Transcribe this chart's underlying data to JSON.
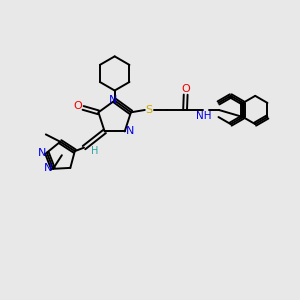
{
  "bg_color": "#e8e8e8",
  "C": "#000000",
  "N": "#0000ee",
  "O": "#ee0000",
  "S": "#ccaa00",
  "H": "#2aa0a0",
  "lw": 1.4,
  "fs": 8.0
}
